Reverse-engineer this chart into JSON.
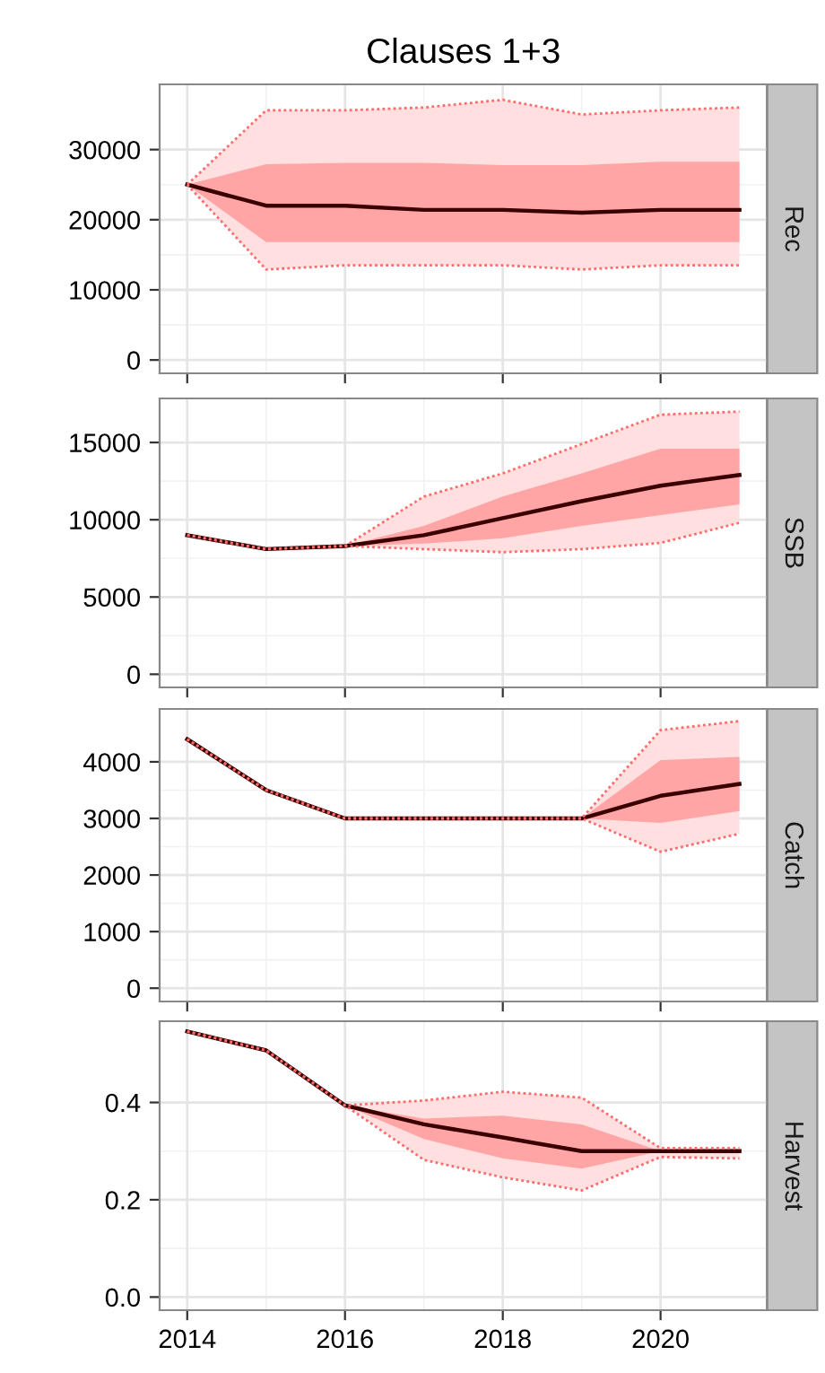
{
  "chart_data": [
    {
      "type": "line",
      "title": "Clauses 1+3",
      "y2label": "Rec",
      "x": [
        2014,
        2015,
        2016,
        2017,
        2018,
        2019,
        2020,
        2021
      ],
      "xlim": [
        2013.65,
        2021.35
      ],
      "xticks": [
        2014,
        2016,
        2018,
        2020
      ],
      "ylim": [
        -1900,
        39300
      ],
      "yticks": [
        0,
        10000,
        20000,
        30000
      ],
      "grid": true,
      "tick_labels": "y",
      "series": [
        {
          "color": "#ff6b6b",
          "line_style": "dotted",
          "values": [
            25000,
            35600,
            35600,
            36000,
            37100,
            35000,
            35600,
            36000
          ],
          "lower": [
            25000,
            12900,
            13500,
            13500,
            13500,
            12900,
            13500,
            13500
          ],
          "upper": [
            25000,
            35600,
            35600,
            36000,
            37100,
            35000,
            35600,
            36000
          ]
        },
        {
          "color": "#ff6b6b",
          "line_style": "dotted",
          "values": [
            25000,
            12900,
            13500,
            13500,
            13500,
            12900,
            13500,
            13500
          ]
        },
        {
          "color": "#3a0000",
          "line_style": "solid",
          "values": [
            25000,
            22000,
            22000,
            21400,
            21400,
            21000,
            21400,
            21400
          ],
          "lower": [
            25000,
            16800,
            16800,
            16800,
            16800,
            16800,
            16800,
            16800
          ],
          "upper": [
            25000,
            27900,
            28100,
            28100,
            27800,
            27800,
            28250,
            28250
          ]
        }
      ]
    },
    {
      "type": "line",
      "y2label": "SSB",
      "x": [
        2014,
        2015,
        2016,
        2017,
        2018,
        2019,
        2020,
        2021
      ],
      "xlim": [
        2013.65,
        2021.35
      ],
      "xticks": [
        2014,
        2016,
        2018,
        2020
      ],
      "ylim": [
        -850,
        17850
      ],
      "yticks": [
        0,
        5000,
        10000,
        15000
      ],
      "grid": true,
      "tick_labels": "y",
      "series": [
        {
          "color": "#ff6b6b",
          "line_style": "dotted",
          "values": [
            9000,
            8100,
            8300,
            11500,
            13000,
            14900,
            16800,
            17000
          ],
          "lower": [
            9000,
            8100,
            8300,
            8100,
            7900,
            8100,
            8500,
            9800
          ],
          "upper": [
            9000,
            8100,
            8300,
            11500,
            13000,
            14900,
            16800,
            17000
          ]
        },
        {
          "color": "#ff6b6b",
          "line_style": "dotted",
          "values": [
            9000,
            8100,
            8300,
            8100,
            7900,
            8100,
            8500,
            9800
          ]
        },
        {
          "color": "#3a0000",
          "line_style": "solid",
          "values": [
            9000,
            8100,
            8300,
            9000,
            10100,
            11200,
            12200,
            12900
          ],
          "lower": [
            9000,
            8100,
            8300,
            8450,
            8800,
            9600,
            10300,
            11000
          ],
          "upper": [
            9000,
            8100,
            8300,
            9600,
            11500,
            13000,
            14600,
            14600
          ]
        }
      ]
    },
    {
      "type": "line",
      "y2label": "Catch",
      "x": [
        2014,
        2015,
        2016,
        2017,
        2018,
        2019,
        2020,
        2021
      ],
      "xlim": [
        2013.65,
        2021.35
      ],
      "xticks": [
        2014,
        2016,
        2018,
        2020
      ],
      "ylim": [
        -235,
        4935
      ],
      "yticks": [
        0,
        1000,
        2000,
        3000,
        4000
      ],
      "grid": true,
      "tick_labels": "y",
      "series": [
        {
          "color": "#ff6b6b",
          "line_style": "dotted",
          "values": [
            4400,
            3500,
            3000,
            3000,
            3000,
            3000,
            4560,
            4720
          ],
          "lower": [
            4400,
            3500,
            3000,
            3000,
            3000,
            3000,
            2410,
            2730
          ],
          "upper": [
            4400,
            3500,
            3000,
            3000,
            3000,
            3000,
            4560,
            4720
          ]
        },
        {
          "color": "#ff6b6b",
          "line_style": "dotted",
          "values": [
            4400,
            3500,
            3000,
            3000,
            3000,
            3000,
            2410,
            2730
          ]
        },
        {
          "color": "#3a0000",
          "line_style": "solid",
          "values": [
            4400,
            3500,
            3000,
            3000,
            3000,
            3000,
            3400,
            3610
          ],
          "lower": [
            4400,
            3500,
            3000,
            3000,
            3000,
            3000,
            2920,
            3130
          ],
          "upper": [
            4400,
            3500,
            3000,
            3000,
            3000,
            3000,
            4030,
            4085
          ]
        }
      ]
    },
    {
      "type": "line",
      "y2label": "Harvest",
      "x": [
        2014,
        2015,
        2016,
        2017,
        2018,
        2019,
        2020,
        2021
      ],
      "xlim": [
        2013.65,
        2021.35
      ],
      "xticks": [
        2014,
        2016,
        2018,
        2020
      ],
      "ylim": [
        -0.027,
        0.567
      ],
      "yticks": [
        {
          "value": 0,
          "label": "0.0"
        },
        0.2,
        0.4
      ],
      "grid": true,
      "series": [
        {
          "color": "#ff6b6b",
          "line_style": "dotted",
          "values": [
            0.546,
            0.507,
            0.394,
            0.404,
            0.422,
            0.41,
            0.306,
            0.306
          ],
          "lower": [
            0.546,
            0.507,
            0.394,
            0.282,
            0.246,
            0.219,
            0.288,
            0.285
          ],
          "upper": [
            0.546,
            0.507,
            0.394,
            0.404,
            0.422,
            0.41,
            0.306,
            0.306
          ]
        },
        {
          "color": "#ff6b6b",
          "line_style": "dotted",
          "values": [
            0.546,
            0.507,
            0.394,
            0.282,
            0.246,
            0.219,
            0.288,
            0.285
          ]
        },
        {
          "color": "#3a0000",
          "line_style": "solid",
          "values": [
            0.546,
            0.507,
            0.394,
            0.355,
            0.328,
            0.3,
            0.3,
            0.3
          ],
          "lower": [
            0.546,
            0.507,
            0.394,
            0.325,
            0.285,
            0.264,
            0.3,
            0.3
          ],
          "upper": [
            0.546,
            0.507,
            0.394,
            0.367,
            0.373,
            0.355,
            0.3,
            0.3
          ]
        }
      ]
    }
  ]
}
